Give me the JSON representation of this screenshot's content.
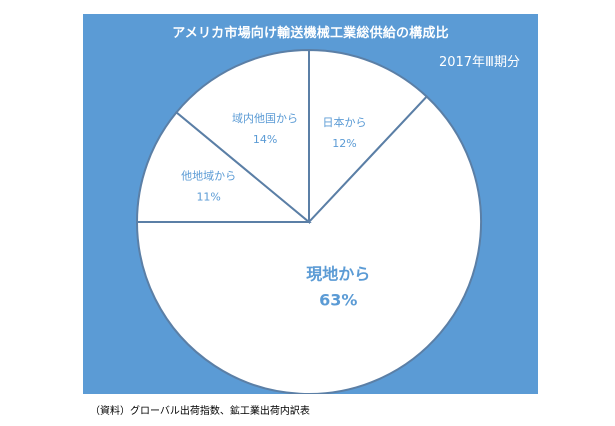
{
  "title": "アメリカ市場向け輸送機械工業総供給の構成比",
  "period": "2017年Ⅲ期分",
  "source": "（資料）グローバル出荷指数、鉱工業出荷内訳表",
  "colors": {
    "panel": "#5b9bd5",
    "slice_fill": "#ffffff",
    "slice_edge": "#5b7fa6",
    "label_text": "#5b9bd5"
  },
  "chart_data": {
    "type": "pie",
    "start_angle_deg": 0,
    "direction": "clockwise",
    "slices": [
      {
        "label": "日本から",
        "value": 12,
        "value_label": "12%"
      },
      {
        "label": "現地から",
        "value": 63,
        "value_label": "63%"
      },
      {
        "label": "他地域から",
        "value": 11,
        "value_label": "11%"
      },
      {
        "label": "域内他国から",
        "value": 14,
        "value_label": "14%"
      }
    ]
  }
}
